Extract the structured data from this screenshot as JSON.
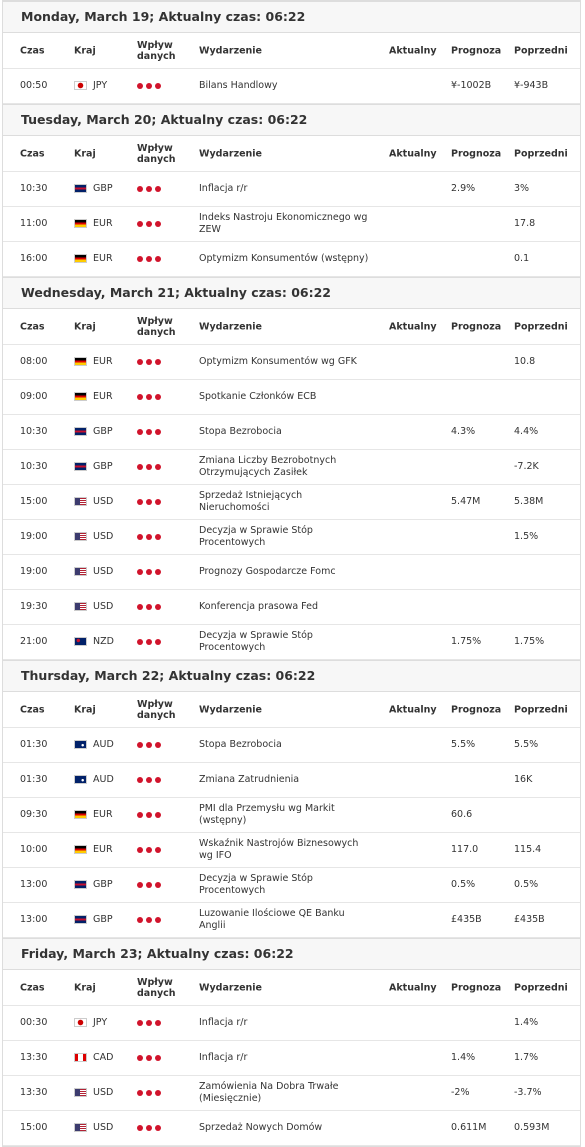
{
  "columns": [
    "Czas",
    "Kraj",
    "Wpływ danych",
    "Wydarzenie",
    "Aktualny",
    "Prognoza",
    "Poprzedni"
  ],
  "days": [
    {
      "title": "Monday, March 19; Aktualny czas: 06:22",
      "rows": [
        {
          "time": "00:50",
          "currency": "JPY",
          "event": "Bilans Handlowy",
          "forecast": "¥-1002B",
          "previous": "¥-943B"
        }
      ]
    },
    {
      "title": "Tuesday, March 20; Aktualny czas: 06:22",
      "rows": [
        {
          "time": "10:30",
          "currency": "GBP",
          "event": "Inflacja r/r",
          "forecast": "2.9%",
          "previous": "3%"
        },
        {
          "time": "11:00",
          "currency": "EUR",
          "event": "Indeks Nastroju Ekonomicznego wg ZEW",
          "previous": "17.8"
        },
        {
          "time": "16:00",
          "currency": "EUR",
          "event": "Optymizm Konsumentów (wstępny)",
          "previous": "0.1"
        }
      ]
    },
    {
      "title": "Wednesday, March 21; Aktualny czas: 06:22",
      "rows": [
        {
          "time": "08:00",
          "currency": "EUR",
          "event": "Optymizm Konsumentów wg GFK",
          "previous": "10.8"
        },
        {
          "time": "09:00",
          "currency": "EUR",
          "event": "Spotkanie Członków ECB"
        },
        {
          "time": "10:30",
          "currency": "GBP",
          "event": "Stopa Bezrobocia",
          "forecast": "4.3%",
          "previous": "4.4%"
        },
        {
          "time": "10:30",
          "currency": "GBP",
          "event": "Zmiana Liczby Bezrobotnych Otrzymujących Zasiłek",
          "previous": "-7.2K"
        },
        {
          "time": "15:00",
          "currency": "USD",
          "event": "Sprzedaż Istniejących Nieruchomości",
          "forecast": "5.47M",
          "previous": "5.38M"
        },
        {
          "time": "19:00",
          "currency": "USD",
          "event": "Decyzja w Sprawie Stóp Procentowych",
          "previous": "1.5%"
        },
        {
          "time": "19:00",
          "currency": "USD",
          "event": "Prognozy Gospodarcze Fomc"
        },
        {
          "time": "19:30",
          "currency": "USD",
          "event": "Konferencja prasowa Fed"
        },
        {
          "time": "21:00",
          "currency": "NZD",
          "event": "Decyzja w Sprawie Stóp Procentowych",
          "forecast": "1.75%",
          "previous": "1.75%"
        }
      ]
    },
    {
      "title": "Thursday, March 22; Aktualny czas: 06:22",
      "rows": [
        {
          "time": "01:30",
          "currency": "AUD",
          "event": "Stopa Bezrobocia",
          "forecast": "5.5%",
          "previous": "5.5%"
        },
        {
          "time": "01:30",
          "currency": "AUD",
          "event": "Zmiana Zatrudnienia",
          "previous": "16K"
        },
        {
          "time": "09:30",
          "currency": "EUR",
          "event": "PMI dla Przemysłu wg Markit (wstępny)",
          "forecast": "60.6"
        },
        {
          "time": "10:00",
          "currency": "EUR",
          "event": "Wskaźnik Nastrojów Biznesowych wg IFO",
          "forecast": "117.0",
          "previous": "115.4"
        },
        {
          "time": "13:00",
          "currency": "GBP",
          "event": "Decyzja w Sprawie Stóp Procentowych",
          "forecast": "0.5%",
          "previous": "0.5%"
        },
        {
          "time": "13:00",
          "currency": "GBP",
          "event": "Luzowanie Ilościowe QE Banku Anglii",
          "forecast": "£435B",
          "previous": "£435B"
        }
      ]
    },
    {
      "title": "Friday, March 23; Aktualny czas: 06:22",
      "rows": [
        {
          "time": "00:30",
          "currency": "JPY",
          "event": "Inflacja r/r",
          "previous": "1.4%"
        },
        {
          "time": "13:30",
          "currency": "CAD",
          "event": "Inflacja r/r",
          "forecast": "1.4%",
          "previous": "1.7%"
        },
        {
          "time": "13:30",
          "currency": "USD",
          "event": "Zamówienia Na Dobra Trwałe (Miesięcznie)",
          "forecast": "-2%",
          "previous": "-3.7%"
        },
        {
          "time": "15:00",
          "currency": "USD",
          "event": "Sprzedaż Nowych Domów",
          "forecast": "0.611M",
          "previous": "0.593M"
        }
      ]
    }
  ]
}
